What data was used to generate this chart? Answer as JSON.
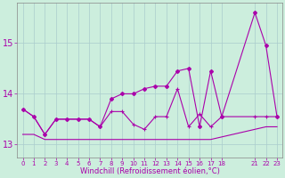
{
  "xlabel": "Windchill (Refroidissement éolien,°C)",
  "background_color": "#cceedd",
  "grid_color": "#aacccc",
  "line_color": "#aa00aa",
  "x_ticks": [
    0,
    1,
    2,
    3,
    4,
    5,
    6,
    7,
    8,
    9,
    10,
    11,
    12,
    13,
    14,
    15,
    16,
    17,
    18,
    21,
    22,
    23
  ],
  "xlim": [
    -0.5,
    23.5
  ],
  "ylim": [
    12.75,
    15.8
  ],
  "yticks": [
    13,
    14,
    15
  ],
  "line_flat_x": [
    0,
    1,
    2,
    3,
    4,
    5,
    6,
    7,
    8,
    9,
    10,
    11,
    12,
    13,
    14,
    15,
    16,
    17,
    18,
    21,
    22,
    23
  ],
  "line_flat_y": [
    13.2,
    13.2,
    13.1,
    13.1,
    13.1,
    13.1,
    13.1,
    13.1,
    13.1,
    13.1,
    13.1,
    13.1,
    13.1,
    13.1,
    13.1,
    13.1,
    13.1,
    13.1,
    13.15,
    13.3,
    13.35,
    13.35
  ],
  "line_mid_x": [
    0,
    1,
    2,
    3,
    4,
    5,
    6,
    7,
    8,
    9,
    10,
    11,
    12,
    13,
    14,
    15,
    16,
    17,
    18,
    21,
    22,
    23
  ],
  "line_mid_y": [
    13.7,
    13.55,
    13.2,
    13.5,
    13.5,
    13.5,
    13.5,
    13.35,
    13.65,
    13.65,
    13.4,
    13.3,
    13.55,
    13.55,
    14.1,
    13.35,
    13.6,
    13.35,
    13.55,
    13.55,
    13.55,
    13.55
  ],
  "line_top_x": [
    0,
    1,
    2,
    3,
    4,
    5,
    6,
    7,
    8,
    9,
    10,
    11,
    12,
    13,
    14,
    15,
    16,
    17,
    18,
    21,
    22,
    23
  ],
  "line_top_y": [
    13.7,
    13.55,
    13.2,
    13.5,
    13.5,
    13.5,
    13.5,
    13.35,
    13.9,
    14.0,
    14.0,
    14.1,
    14.15,
    14.15,
    14.45,
    14.5,
    13.35,
    14.45,
    13.55,
    15.6,
    14.95,
    13.55
  ]
}
